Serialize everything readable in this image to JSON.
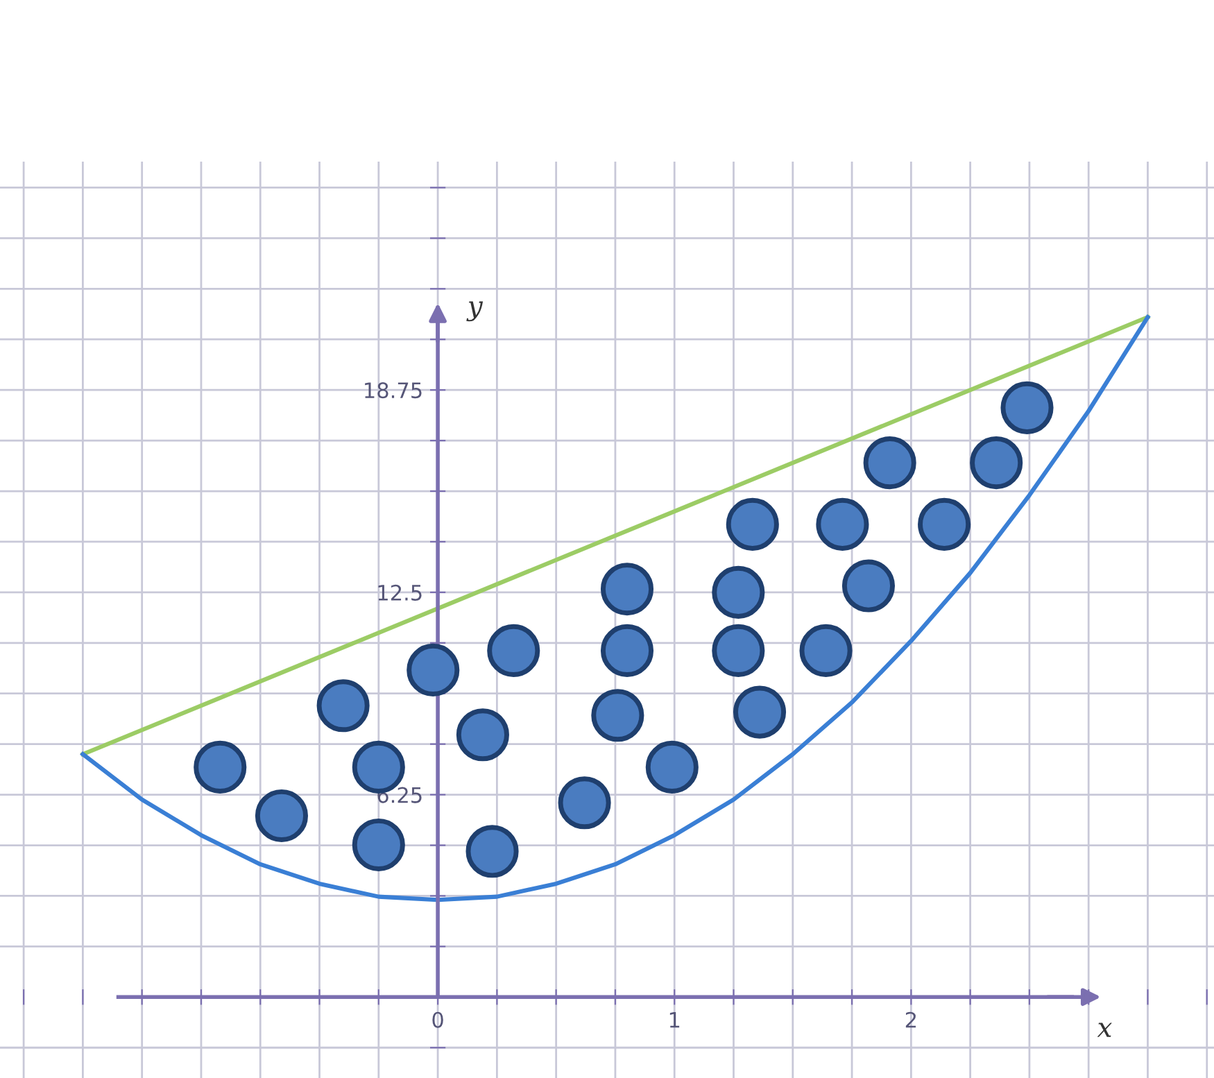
{
  "chart_data": {
    "type": "line",
    "xlabel": "x",
    "ylabel": "y",
    "xlim": [
      -1.85,
      3.28
    ],
    "ylim": [
      -2.5,
      25.8
    ],
    "xticks": [
      {
        "value": -1.75,
        "label": null
      },
      {
        "value": -1.5,
        "label": null
      },
      {
        "value": -1.25,
        "label": null
      },
      {
        "value": -1,
        "label": null
      },
      {
        "value": -0.75,
        "label": null
      },
      {
        "value": -0.5,
        "label": null
      },
      {
        "value": -0.25,
        "label": null
      },
      0,
      {
        "value": 0.25,
        "label": null
      },
      {
        "value": 0.5,
        "label": null
      },
      {
        "value": 0.75,
        "label": null
      },
      1,
      {
        "value": 1.25,
        "label": null
      },
      {
        "value": 1.5,
        "label": null
      },
      {
        "value": 1.75,
        "label": null
      },
      2,
      {
        "value": 2.25,
        "label": null
      },
      {
        "value": 2.5,
        "label": null
      },
      {
        "value": 2.75,
        "label": null
      },
      {
        "value": 3,
        "label": null
      },
      {
        "value": 3.25,
        "label": null
      }
    ],
    "yticks": [
      {
        "value": -1.5625,
        "label": null
      },
      {
        "value": 1.5625,
        "label": null
      },
      {
        "value": 3.125,
        "label": null
      },
      {
        "value": 4.6875,
        "label": null
      },
      6.25,
      {
        "value": 7.8125,
        "label": null
      },
      {
        "value": 9.375,
        "label": null
      },
      {
        "value": 10.9375,
        "label": null
      },
      12.5,
      {
        "value": 14.0625,
        "label": null
      },
      {
        "value": 15.625,
        "label": null
      },
      {
        "value": 17.1875,
        "label": null
      },
      18.75,
      {
        "value": 20.3125,
        "label": null
      },
      {
        "value": 21.875,
        "label": null
      },
      {
        "value": 23.4375,
        "label": null
      },
      {
        "value": 25,
        "label": null
      }
    ],
    "grid": true,
    "series": [
      {
        "color": "#9ccc65",
        "marker": "none",
        "x": [
          -1.5,
          3
        ],
        "values": [
          7.5,
          21
        ]
      },
      {
        "color": "#3a7fd5",
        "marker": "none",
        "x": [
          -1.5,
          -1.25,
          -1,
          -0.75,
          -0.5,
          -0.25,
          0,
          0.25,
          0.5,
          0.75,
          1,
          1.25,
          1.5,
          1.75,
          2,
          2.25,
          2.5,
          2.75,
          3
        ],
        "values": [
          7.5,
          6.1,
          5,
          4.1,
          3.5,
          3.1,
          3,
          3.1,
          3.5,
          4.1,
          5,
          6.1,
          7.5,
          9.1,
          11,
          13.1,
          15.5,
          18.1,
          21
        ]
      },
      {
        "type": "scatter",
        "color": "#4a7cc0",
        "marker": "circle",
        "x": [
          -0.92,
          -0.66,
          -0.4,
          -0.25,
          -0.25,
          -0.02,
          0.19,
          0.23,
          0.32,
          0.62,
          0.76,
          0.8,
          0.8,
          0.99,
          1.27,
          1.27,
          1.36,
          1.33,
          1.64,
          1.71,
          1.82,
          1.91,
          2.14,
          2.36,
          2.49
        ],
        "values": [
          7.1,
          5.6,
          9.0,
          7.1,
          4.7,
          10.1,
          8.1,
          4.5,
          10.7,
          6.0,
          8.7,
          12.6,
          10.7,
          7.1,
          12.5,
          10.7,
          8.8,
          14.6,
          10.7,
          14.6,
          12.7,
          16.5,
          14.6,
          16.5,
          18.2
        ]
      }
    ]
  }
}
